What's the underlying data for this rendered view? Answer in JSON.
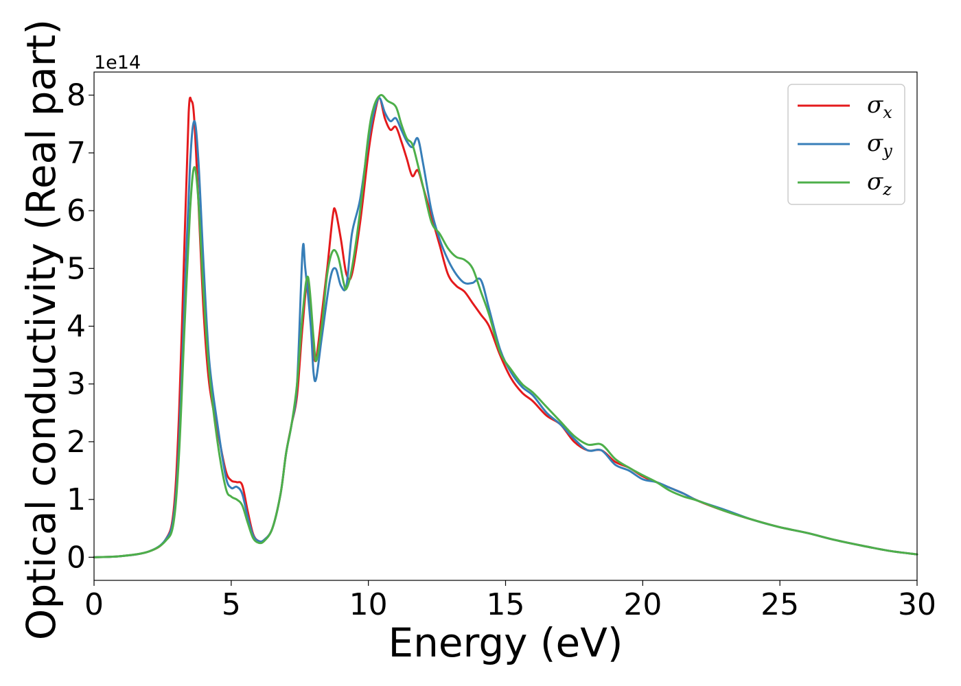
{
  "chart_data": {
    "type": "line",
    "xlabel": "Energy (eV)",
    "ylabel": "Optical conductivity (Real part)",
    "y_offset_label": "1e14",
    "xlim": [
      0,
      30
    ],
    "ylim": [
      -0.4,
      8.4
    ],
    "xticks": [
      0,
      5,
      10,
      15,
      20,
      25,
      30
    ],
    "yticks": [
      0,
      1,
      2,
      3,
      4,
      5,
      6,
      7,
      8
    ],
    "grid": false,
    "legend_position": "top-right",
    "series": [
      {
        "name": "σ",
        "subscript": "x",
        "color": "#e41a1c",
        "points": [
          [
            0,
            0
          ],
          [
            1,
            0.02
          ],
          [
            2,
            0.1
          ],
          [
            2.6,
            0.3
          ],
          [
            2.9,
            0.8
          ],
          [
            3.1,
            2.5
          ],
          [
            3.3,
            5.5
          ],
          [
            3.45,
            7.7
          ],
          [
            3.55,
            7.9
          ],
          [
            3.65,
            7.6
          ],
          [
            3.8,
            6.2
          ],
          [
            4.0,
            4.2
          ],
          [
            4.2,
            3.0
          ],
          [
            4.5,
            2.2
          ],
          [
            4.8,
            1.5
          ],
          [
            5.0,
            1.33
          ],
          [
            5.2,
            1.3
          ],
          [
            5.4,
            1.25
          ],
          [
            5.6,
            0.8
          ],
          [
            5.8,
            0.4
          ],
          [
            6.0,
            0.28
          ],
          [
            6.2,
            0.3
          ],
          [
            6.5,
            0.5
          ],
          [
            6.8,
            1.1
          ],
          [
            7.0,
            1.8
          ],
          [
            7.2,
            2.3
          ],
          [
            7.4,
            2.8
          ],
          [
            7.6,
            4.0
          ],
          [
            7.8,
            4.8
          ],
          [
            8.0,
            3.6
          ],
          [
            8.1,
            3.45
          ],
          [
            8.3,
            4.2
          ],
          [
            8.5,
            5.0
          ],
          [
            8.7,
            5.9
          ],
          [
            8.8,
            6.0
          ],
          [
            9.0,
            5.5
          ],
          [
            9.2,
            4.9
          ],
          [
            9.4,
            4.9
          ],
          [
            9.7,
            5.8
          ],
          [
            10.0,
            7.0
          ],
          [
            10.2,
            7.6
          ],
          [
            10.4,
            7.95
          ],
          [
            10.6,
            7.6
          ],
          [
            10.8,
            7.4
          ],
          [
            11.0,
            7.45
          ],
          [
            11.2,
            7.2
          ],
          [
            11.4,
            6.9
          ],
          [
            11.6,
            6.6
          ],
          [
            11.8,
            6.7
          ],
          [
            12.0,
            6.4
          ],
          [
            12.3,
            5.9
          ],
          [
            12.6,
            5.4
          ],
          [
            12.9,
            4.9
          ],
          [
            13.2,
            4.7
          ],
          [
            13.5,
            4.6
          ],
          [
            13.8,
            4.4
          ],
          [
            14.1,
            4.2
          ],
          [
            14.4,
            4.0
          ],
          [
            14.8,
            3.5
          ],
          [
            15.2,
            3.1
          ],
          [
            15.6,
            2.85
          ],
          [
            16.0,
            2.7
          ],
          [
            16.5,
            2.45
          ],
          [
            17.0,
            2.3
          ],
          [
            17.5,
            2.0
          ],
          [
            18.0,
            1.85
          ],
          [
            18.5,
            1.85
          ],
          [
            19.0,
            1.65
          ],
          [
            19.5,
            1.55
          ],
          [
            20.0,
            1.4
          ],
          [
            20.5,
            1.3
          ],
          [
            21.0,
            1.2
          ],
          [
            21.5,
            1.1
          ],
          [
            22.0,
            0.98
          ],
          [
            23.0,
            0.8
          ],
          [
            24.0,
            0.65
          ],
          [
            25.0,
            0.52
          ],
          [
            26.0,
            0.42
          ],
          [
            27.0,
            0.3
          ],
          [
            28.0,
            0.2
          ],
          [
            29.0,
            0.11
          ],
          [
            30.0,
            0.05
          ]
        ]
      },
      {
        "name": "σ",
        "subscript": "y",
        "color": "#377eb8",
        "points": [
          [
            0,
            0
          ],
          [
            1,
            0.02
          ],
          [
            2,
            0.1
          ],
          [
            2.6,
            0.3
          ],
          [
            2.9,
            0.7
          ],
          [
            3.1,
            2.0
          ],
          [
            3.3,
            4.5
          ],
          [
            3.5,
            6.8
          ],
          [
            3.65,
            7.55
          ],
          [
            3.8,
            6.9
          ],
          [
            4.0,
            5.0
          ],
          [
            4.2,
            3.4
          ],
          [
            4.5,
            2.3
          ],
          [
            4.8,
            1.4
          ],
          [
            5.0,
            1.2
          ],
          [
            5.2,
            1.22
          ],
          [
            5.4,
            1.1
          ],
          [
            5.6,
            0.7
          ],
          [
            5.8,
            0.38
          ],
          [
            6.0,
            0.28
          ],
          [
            6.2,
            0.3
          ],
          [
            6.5,
            0.5
          ],
          [
            6.8,
            1.1
          ],
          [
            7.0,
            1.8
          ],
          [
            7.2,
            2.3
          ],
          [
            7.4,
            3.0
          ],
          [
            7.6,
            5.3
          ],
          [
            7.7,
            5.0
          ],
          [
            7.9,
            4.0
          ],
          [
            8.0,
            3.2
          ],
          [
            8.1,
            3.1
          ],
          [
            8.3,
            3.8
          ],
          [
            8.6,
            4.8
          ],
          [
            8.8,
            5.0
          ],
          [
            9.0,
            4.7
          ],
          [
            9.2,
            4.7
          ],
          [
            9.4,
            5.6
          ],
          [
            9.7,
            6.2
          ],
          [
            10.0,
            7.2
          ],
          [
            10.2,
            7.7
          ],
          [
            10.4,
            7.95
          ],
          [
            10.6,
            7.7
          ],
          [
            10.8,
            7.55
          ],
          [
            11.0,
            7.6
          ],
          [
            11.2,
            7.4
          ],
          [
            11.4,
            7.2
          ],
          [
            11.6,
            7.1
          ],
          [
            11.8,
            7.25
          ],
          [
            12.0,
            6.8
          ],
          [
            12.3,
            6.0
          ],
          [
            12.6,
            5.5
          ],
          [
            12.9,
            5.15
          ],
          [
            13.2,
            4.9
          ],
          [
            13.5,
            4.75
          ],
          [
            13.8,
            4.75
          ],
          [
            14.1,
            4.8
          ],
          [
            14.4,
            4.3
          ],
          [
            14.8,
            3.6
          ],
          [
            15.2,
            3.2
          ],
          [
            15.6,
            2.95
          ],
          [
            16.0,
            2.8
          ],
          [
            16.5,
            2.5
          ],
          [
            17.0,
            2.3
          ],
          [
            17.5,
            2.05
          ],
          [
            18.0,
            1.85
          ],
          [
            18.5,
            1.85
          ],
          [
            19.0,
            1.6
          ],
          [
            19.5,
            1.5
          ],
          [
            20.0,
            1.35
          ],
          [
            20.5,
            1.3
          ],
          [
            21.0,
            1.2
          ],
          [
            21.5,
            1.1
          ],
          [
            22.0,
            0.98
          ],
          [
            23.0,
            0.82
          ],
          [
            24.0,
            0.65
          ],
          [
            25.0,
            0.52
          ],
          [
            26.0,
            0.42
          ],
          [
            27.0,
            0.3
          ],
          [
            28.0,
            0.2
          ],
          [
            29.0,
            0.11
          ],
          [
            30.0,
            0.05
          ]
        ]
      },
      {
        "name": "σ",
        "subscript": "z",
        "color": "#4daf4a",
        "points": [
          [
            0,
            0
          ],
          [
            1,
            0.02
          ],
          [
            2,
            0.1
          ],
          [
            2.6,
            0.28
          ],
          [
            2.9,
            0.6
          ],
          [
            3.1,
            1.8
          ],
          [
            3.3,
            4.0
          ],
          [
            3.5,
            6.0
          ],
          [
            3.65,
            6.75
          ],
          [
            3.8,
            6.2
          ],
          [
            4.0,
            4.5
          ],
          [
            4.2,
            3.2
          ],
          [
            4.5,
            2.0
          ],
          [
            4.8,
            1.2
          ],
          [
            5.0,
            1.05
          ],
          [
            5.2,
            1.0
          ],
          [
            5.4,
            0.9
          ],
          [
            5.6,
            0.6
          ],
          [
            5.8,
            0.33
          ],
          [
            6.0,
            0.25
          ],
          [
            6.2,
            0.28
          ],
          [
            6.5,
            0.5
          ],
          [
            6.8,
            1.1
          ],
          [
            7.0,
            1.8
          ],
          [
            7.2,
            2.3
          ],
          [
            7.4,
            3.0
          ],
          [
            7.6,
            4.2
          ],
          [
            7.8,
            4.85
          ],
          [
            8.0,
            3.8
          ],
          [
            8.1,
            3.4
          ],
          [
            8.3,
            4.0
          ],
          [
            8.5,
            4.9
          ],
          [
            8.7,
            5.3
          ],
          [
            8.9,
            5.2
          ],
          [
            9.1,
            4.75
          ],
          [
            9.2,
            4.65
          ],
          [
            9.4,
            5.0
          ],
          [
            9.7,
            6.0
          ],
          [
            10.0,
            7.3
          ],
          [
            10.2,
            7.8
          ],
          [
            10.45,
            8.0
          ],
          [
            10.7,
            7.9
          ],
          [
            11.0,
            7.8
          ],
          [
            11.2,
            7.5
          ],
          [
            11.4,
            7.25
          ],
          [
            11.6,
            7.15
          ],
          [
            11.8,
            6.8
          ],
          [
            12.0,
            6.4
          ],
          [
            12.3,
            5.8
          ],
          [
            12.6,
            5.6
          ],
          [
            12.9,
            5.35
          ],
          [
            13.2,
            5.2
          ],
          [
            13.5,
            5.15
          ],
          [
            13.8,
            5.0
          ],
          [
            14.1,
            4.6
          ],
          [
            14.4,
            4.2
          ],
          [
            14.8,
            3.55
          ],
          [
            15.2,
            3.25
          ],
          [
            15.6,
            3.0
          ],
          [
            16.0,
            2.85
          ],
          [
            16.5,
            2.6
          ],
          [
            17.0,
            2.35
          ],
          [
            17.5,
            2.1
          ],
          [
            18.0,
            1.95
          ],
          [
            18.5,
            1.95
          ],
          [
            19.0,
            1.7
          ],
          [
            19.5,
            1.55
          ],
          [
            20.0,
            1.42
          ],
          [
            20.5,
            1.3
          ],
          [
            21.0,
            1.15
          ],
          [
            21.5,
            1.05
          ],
          [
            22.0,
            0.98
          ],
          [
            23.0,
            0.8
          ],
          [
            24.0,
            0.65
          ],
          [
            25.0,
            0.52
          ],
          [
            26.0,
            0.42
          ],
          [
            27.0,
            0.3
          ],
          [
            28.0,
            0.2
          ],
          [
            29.0,
            0.11
          ],
          [
            30.0,
            0.05
          ]
        ]
      }
    ]
  }
}
